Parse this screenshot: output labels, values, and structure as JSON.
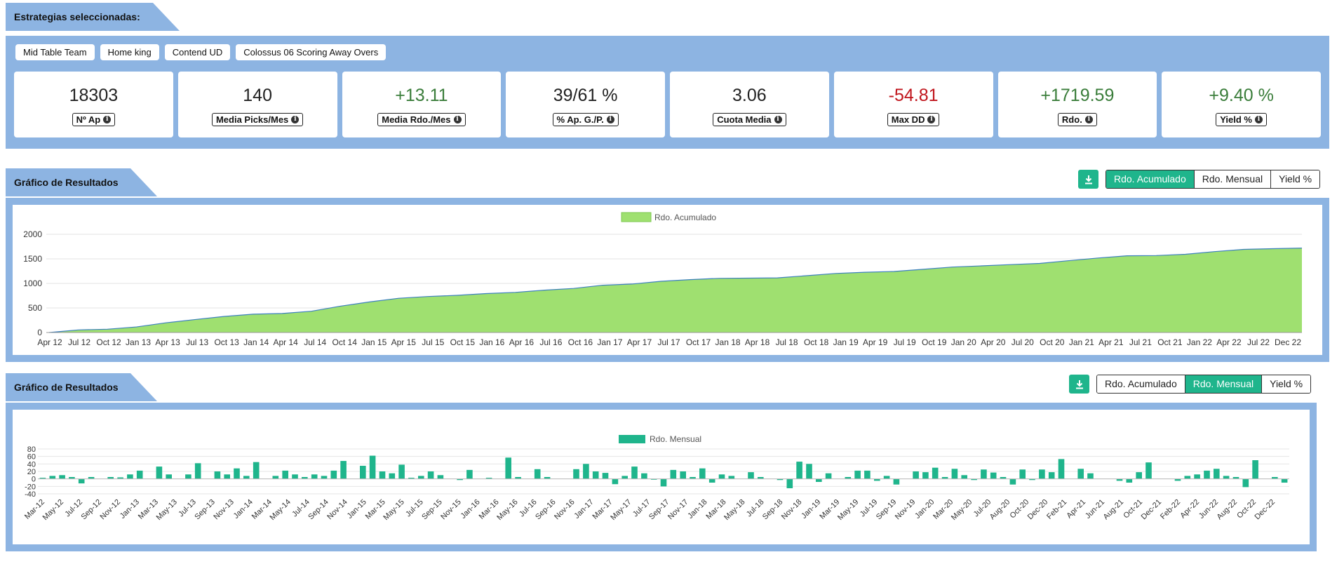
{
  "section1": {
    "title": "Estrategias seleccionadas:",
    "chips": [
      "Mid Table Team",
      "Home king",
      "Contend UD",
      "Colossus 06 Scoring Away Overs"
    ],
    "cards": [
      {
        "value": "18303",
        "label": "Nº Ap",
        "tone": "neutral"
      },
      {
        "value": "140",
        "label": "Media Picks/Mes",
        "tone": "neutral"
      },
      {
        "value": "+13.11",
        "label": "Media Rdo./Mes",
        "tone": "pos"
      },
      {
        "value": "39/61 %",
        "label": "% Ap. G./P.",
        "tone": "neutral"
      },
      {
        "value": "3.06",
        "label": "Cuota Media",
        "tone": "neutral"
      },
      {
        "value": "-54.81",
        "label": "Max DD",
        "tone": "neg"
      },
      {
        "value": "+1719.59",
        "label": "Rdo.",
        "tone": "pos"
      },
      {
        "value": "+9.40 %",
        "label": "Yield %",
        "tone": "pos"
      }
    ]
  },
  "section2": {
    "title": "Gráfico de Resultados",
    "buttons": [
      "Rdo. Acumulado",
      "Rdo. Mensual",
      "Yield %"
    ],
    "active": 0
  },
  "section3": {
    "title": "Gráfico de Resultados",
    "buttons": [
      "Rdo. Acumulado",
      "Rdo. Mensual",
      "Yield %"
    ],
    "active": 1
  },
  "icons": {
    "download": "download-icon",
    "info": "info-icon"
  },
  "colors": {
    "panel": "#8db4e2",
    "accent": "#1fb58c",
    "area_fill": "#9fe070",
    "area_line": "#3c7fbf",
    "positive": "#3a7d3a",
    "negative": "#c0151c"
  },
  "chart_data": [
    {
      "type": "area",
      "legend": "Rdo. Acumulado",
      "legend_position": "top-center",
      "ylim": [
        0,
        2000
      ],
      "yticks": [
        0,
        500,
        1000,
        1500,
        2000
      ],
      "grid": true,
      "xticks": [
        "Apr 12",
        "Jul 12",
        "Oct 12",
        "Jan 13",
        "Apr 13",
        "Jul 13",
        "Oct 13",
        "Jan 14",
        "Apr 14",
        "Jul 14",
        "Oct 14",
        "Jan 15",
        "Apr 15",
        "Jul 15",
        "Oct 15",
        "Jan 16",
        "Apr 16",
        "Jul 16",
        "Oct 16",
        "Jan 17",
        "Apr 17",
        "Jul 17",
        "Oct 17",
        "Jan 18",
        "Apr 18",
        "Jul 18",
        "Oct 18",
        "Jan 19",
        "Apr 19",
        "Jul 19",
        "Oct 19",
        "Jan 20",
        "Apr 20",
        "Jul 20",
        "Oct 20",
        "Jan 21",
        "Apr 21",
        "Jul 21",
        "Oct 21",
        "Jan 22",
        "Apr 22",
        "Jul 22",
        "Dec 22"
      ],
      "series": [
        {
          "values": [
            0,
            50,
            70,
            110,
            200,
            260,
            330,
            370,
            390,
            430,
            540,
            620,
            700,
            730,
            760,
            790,
            820,
            860,
            900,
            960,
            990,
            1040,
            1080,
            1100,
            1110,
            1110,
            1160,
            1200,
            1230,
            1240,
            1290,
            1330,
            1360,
            1380,
            1410,
            1460,
            1520,
            1560,
            1570,
            1590,
            1650,
            1690,
            1710,
            1720
          ]
        }
      ]
    },
    {
      "type": "bar",
      "legend": "Rdo. Mensual",
      "legend_position": "top-center",
      "ylim": [
        -40,
        80
      ],
      "yticks": [
        -40,
        -20,
        0,
        20,
        40,
        60,
        80
      ],
      "grid": true,
      "tick_labels": [
        "Mar-12",
        "May-12",
        "Jul-12",
        "Sep-12",
        "Nov-12",
        "Jan-13",
        "Mar-13",
        "May-13",
        "Jul-13",
        "Sep-13",
        "Nov-13",
        "Jan-14",
        "Mar-14",
        "May-14",
        "Jul-14",
        "Sep-14",
        "Nov-14",
        "Jan-15",
        "Mar-15",
        "May-15",
        "Jul-15",
        "Sep-15",
        "Nov-15",
        "Jan-16",
        "Mar-16",
        "May-16",
        "Jul-16",
        "Sep-16",
        "Nov-16",
        "Jan-17",
        "Mar-17",
        "May-17",
        "Jul-17",
        "Sep-17",
        "Nov-17",
        "Jan-18",
        "Mar-18",
        "May-18",
        "Jul-18",
        "Sep-18",
        "Nov-18",
        "Jan-19",
        "Mar-19",
        "May-19",
        "Jul-19",
        "Sep-19",
        "Nov-19",
        "Jan-20",
        "Mar-20",
        "May-20",
        "Jul-20",
        "Aug-20",
        "Oct-20",
        "Dec-20",
        "Feb-21",
        "Apr-21",
        "Jun-21",
        "Aug-21",
        "Oct-21",
        "Dec-21",
        "Feb-22",
        "Apr-22",
        "Jun-22",
        "Aug-22",
        "Oct-22",
        "Dec-22"
      ],
      "values": [
        3,
        8,
        10,
        5,
        -12,
        5,
        0,
        5,
        4,
        12,
        22,
        0,
        33,
        12,
        0,
        12,
        42,
        0,
        20,
        12,
        28,
        8,
        45,
        0,
        8,
        22,
        12,
        5,
        12,
        8,
        22,
        48,
        0,
        35,
        62,
        20,
        15,
        38,
        3,
        8,
        20,
        10,
        0,
        -3,
        24,
        0,
        3,
        0,
        57,
        5,
        0,
        26,
        5,
        0,
        0,
        26,
        40,
        20,
        16,
        -14,
        8,
        33,
        15,
        -2,
        -20,
        24,
        20,
        5,
        28,
        -10,
        12,
        8,
        0,
        18,
        5,
        0,
        -3,
        -25,
        46,
        40,
        -8,
        15,
        0,
        5,
        22,
        22,
        -5,
        8,
        -15,
        0,
        20,
        18,
        30,
        5,
        27,
        10,
        -3,
        25,
        17,
        5,
        -15,
        25,
        -3,
        25,
        18,
        53,
        0,
        27,
        15,
        0,
        0,
        -5,
        -10,
        18,
        44,
        0,
        0,
        -5,
        8,
        12,
        22,
        27,
        8,
        5,
        -22,
        50,
        0,
        5,
        -10
      ],
      "xlabel": "",
      "ylabel": ""
    }
  ]
}
